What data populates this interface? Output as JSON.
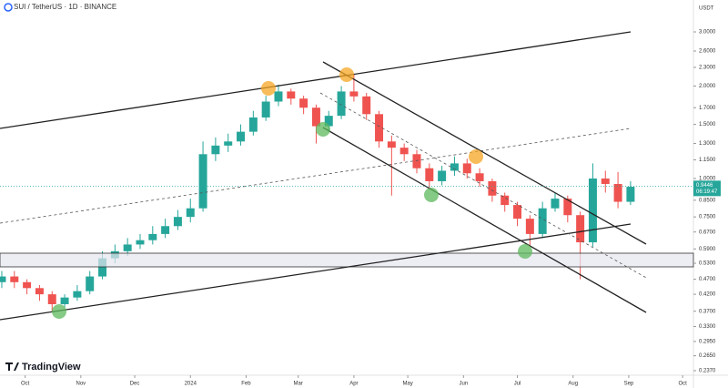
{
  "chart_data": {
    "type": "candlestick",
    "title": "SUI / TetherUS · 1D · BINANCE",
    "currency": "USDT",
    "brand": "TradingView",
    "log_scale": true,
    "up_color": "#26a69a",
    "down_color": "#ef5350",
    "ylim": [
      0.229,
      3.81
    ],
    "yticks": [
      {
        "value": 3,
        "label": "3.0000"
      },
      {
        "value": 2.6,
        "label": "2.6000"
      },
      {
        "value": 2.3,
        "label": "2.3000"
      },
      {
        "value": 2,
        "label": "2.0000"
      },
      {
        "value": 1.7,
        "label": "1.7000"
      },
      {
        "value": 1.5,
        "label": "1.5000"
      },
      {
        "value": 1.3,
        "label": "1.3000"
      },
      {
        "value": 1.15,
        "label": "1.1500"
      },
      {
        "value": 1,
        "label": "1.0000"
      },
      {
        "value": 0.85,
        "label": "0.8500"
      },
      {
        "value": 0.75,
        "label": "0.7500"
      },
      {
        "value": 0.67,
        "label": "0.6700"
      },
      {
        "value": 0.59,
        "label": "0.5900"
      },
      {
        "value": 0.53,
        "label": "0.5300"
      },
      {
        "value": 0.47,
        "label": "0.4700"
      },
      {
        "value": 0.42,
        "label": "0.4200"
      },
      {
        "value": 0.37,
        "label": "0.3700"
      },
      {
        "value": 0.33,
        "label": "0.3300"
      },
      {
        "value": 0.295,
        "label": "0.2950"
      },
      {
        "value": 0.265,
        "label": "0.2650"
      },
      {
        "value": 0.237,
        "label": "0.2370"
      }
    ],
    "xlim": [
      "2023-09-17",
      "2024-10-07"
    ],
    "xticks": [
      {
        "value": "2023-10-01",
        "label": "Oct"
      },
      {
        "value": "2023-11-01",
        "label": "Nov"
      },
      {
        "value": "2023-12-01",
        "label": "Dec"
      },
      {
        "value": "2024-01-01",
        "label": "2024"
      },
      {
        "value": "2024-02-01",
        "label": "Feb"
      },
      {
        "value": "2024-03-01",
        "label": "Mar"
      },
      {
        "value": "2024-04-01",
        "label": "Apr"
      },
      {
        "value": "2024-05-01",
        "label": "May"
      },
      {
        "value": "2024-06-01",
        "label": "Jun"
      },
      {
        "value": "2024-07-01",
        "label": "Jul"
      },
      {
        "value": "2024-08-01",
        "label": "Aug"
      },
      {
        "value": "2024-09-01",
        "label": "Sep"
      },
      {
        "value": "2024-10-01",
        "label": "Oct"
      }
    ],
    "last_price": {
      "value": 0.9446,
      "label": "0.9446",
      "countdown": "06:19:47"
    },
    "x": [
      "2023-09-18",
      "2023-09-25",
      "2023-10-02",
      "2023-10-09",
      "2023-10-16",
      "2023-10-23",
      "2023-10-30",
      "2023-11-06",
      "2023-11-13",
      "2023-11-20",
      "2023-11-27",
      "2023-12-04",
      "2023-12-11",
      "2023-12-18",
      "2023-12-25",
      "2024-01-01",
      "2024-01-08",
      "2024-01-15",
      "2024-01-22",
      "2024-01-29",
      "2024-02-05",
      "2024-02-12",
      "2024-02-19",
      "2024-02-26",
      "2024-03-04",
      "2024-03-11",
      "2024-03-18",
      "2024-03-25",
      "2024-04-01",
      "2024-04-08",
      "2024-04-15",
      "2024-04-22",
      "2024-04-29",
      "2024-05-06",
      "2024-05-13",
      "2024-05-20",
      "2024-05-27",
      "2024-06-03",
      "2024-06-10",
      "2024-06-17",
      "2024-06-24",
      "2024-07-01",
      "2024-07-08",
      "2024-07-15",
      "2024-07-22",
      "2024-07-29",
      "2024-08-05",
      "2024-08-12",
      "2024-08-19",
      "2024-08-26",
      "2024-09-02"
    ],
    "open": [
      0.46,
      0.48,
      0.46,
      0.44,
      0.42,
      0.39,
      0.41,
      0.43,
      0.48,
      0.55,
      0.58,
      0.61,
      0.63,
      0.66,
      0.7,
      0.75,
      0.8,
      1.2,
      1.28,
      1.32,
      1.42,
      1.58,
      1.78,
      1.92,
      1.82,
      1.7,
      1.48,
      1.6,
      1.92,
      1.85,
      1.62,
      1.32,
      1.26,
      1.2,
      1.08,
      0.98,
      1.06,
      1.12,
      1.04,
      0.98,
      0.88,
      0.82,
      0.74,
      0.66,
      0.8,
      0.86,
      0.76,
      0.62,
      1.0,
      0.96,
      0.84
    ],
    "high": [
      0.5,
      0.5,
      0.47,
      0.45,
      0.43,
      0.42,
      0.45,
      0.5,
      0.58,
      0.61,
      0.64,
      0.66,
      0.7,
      0.74,
      0.79,
      0.86,
      1.32,
      1.36,
      1.4,
      1.5,
      1.66,
      1.86,
      2.02,
      1.96,
      1.86,
      1.74,
      1.66,
      2.0,
      2.18,
      1.9,
      1.66,
      1.38,
      1.3,
      1.24,
      1.12,
      1.1,
      1.18,
      1.16,
      1.08,
      1.0,
      0.9,
      0.84,
      0.76,
      0.84,
      0.9,
      0.88,
      0.78,
      1.12,
      1.06,
      1.05,
      0.98
    ],
    "low": [
      0.44,
      0.44,
      0.42,
      0.4,
      0.37,
      0.38,
      0.4,
      0.42,
      0.47,
      0.53,
      0.56,
      0.59,
      0.61,
      0.64,
      0.68,
      0.72,
      0.78,
      1.14,
      1.22,
      1.28,
      1.38,
      1.54,
      1.72,
      1.74,
      1.62,
      1.3,
      1.42,
      1.56,
      1.78,
      1.55,
      1.26,
      0.88,
      1.14,
      1.04,
      0.92,
      0.95,
      1.02,
      1.0,
      0.94,
      0.84,
      0.78,
      0.7,
      0.6,
      0.64,
      0.78,
      0.72,
      0.47,
      0.6,
      0.9,
      0.8,
      0.82
    ],
    "close": [
      0.48,
      0.46,
      0.44,
      0.42,
      0.39,
      0.41,
      0.43,
      0.48,
      0.55,
      0.58,
      0.61,
      0.63,
      0.66,
      0.7,
      0.75,
      0.8,
      1.2,
      1.28,
      1.32,
      1.42,
      1.58,
      1.78,
      1.92,
      1.82,
      1.7,
      1.48,
      1.6,
      1.92,
      1.85,
      1.62,
      1.32,
      1.26,
      1.2,
      1.08,
      0.98,
      1.06,
      1.12,
      1.04,
      0.98,
      0.88,
      0.82,
      0.74,
      0.66,
      0.8,
      0.86,
      0.76,
      0.62,
      1.0,
      0.96,
      0.84,
      0.94
    ]
  }
}
